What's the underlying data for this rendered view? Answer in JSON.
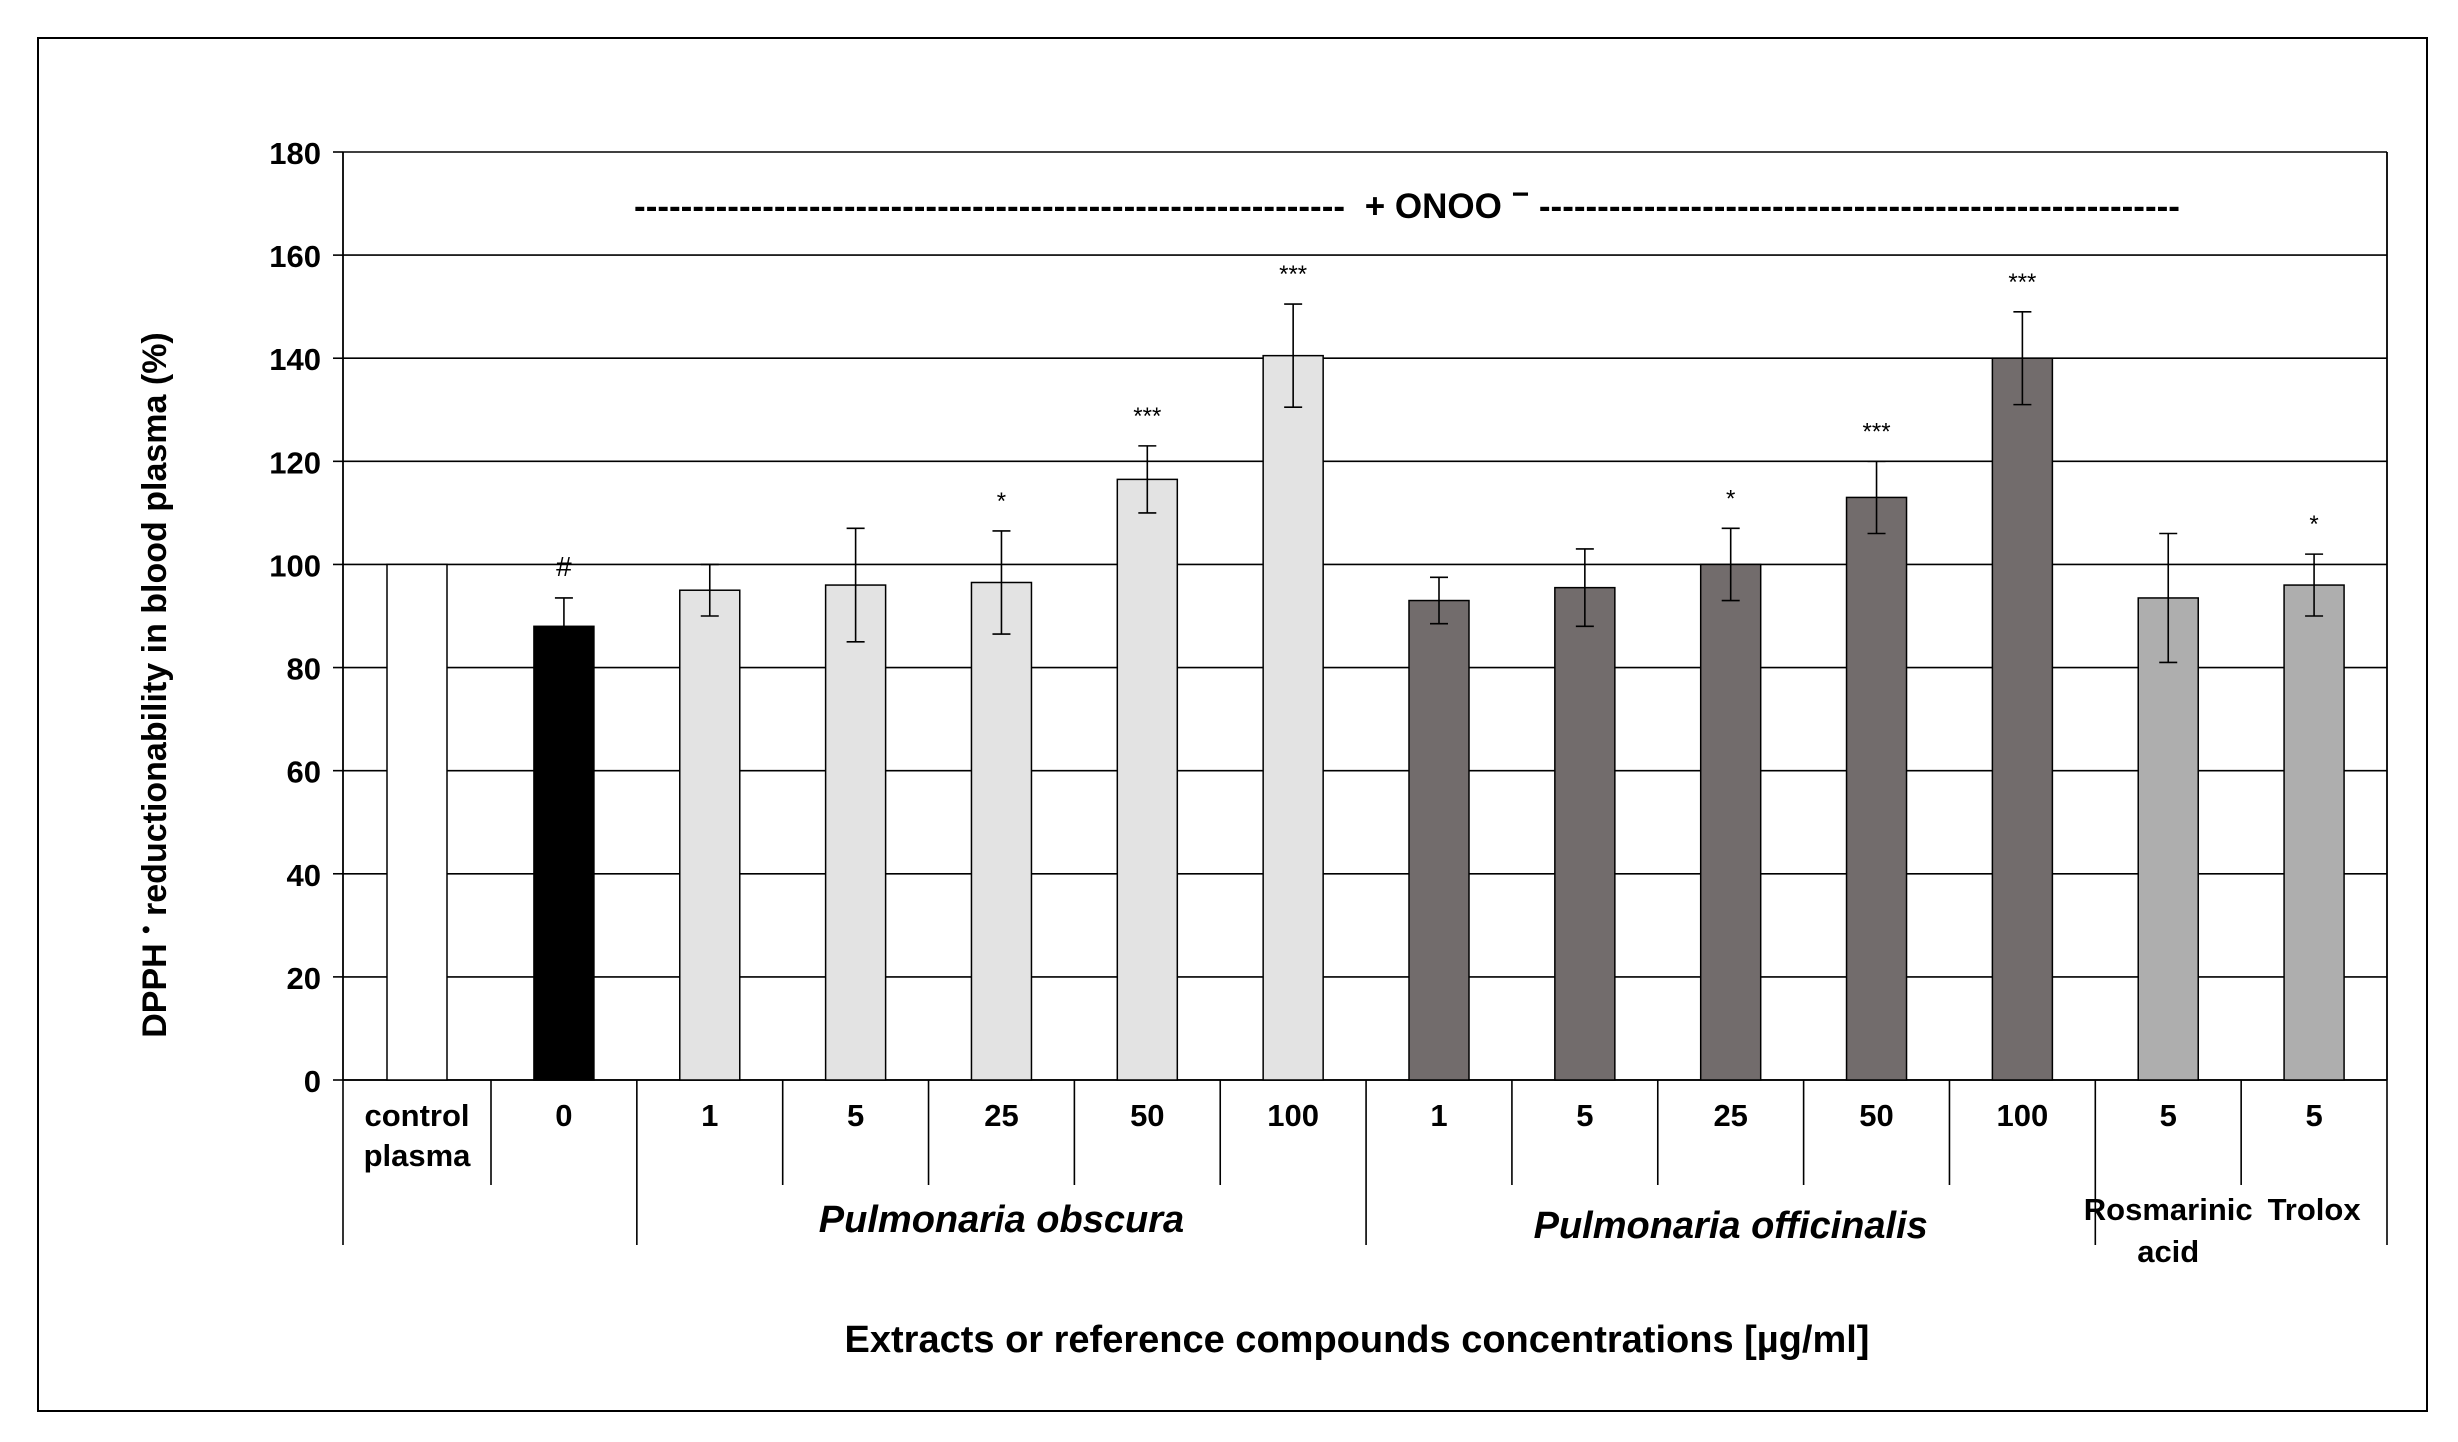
{
  "chart_data": {
    "type": "bar",
    "ylabel_main": "DPPH",
    "ylabel_sup": "•",
    "ylabel_rest": " reductionability in blood plasma (%)",
    "xlabel": "Extracts or reference compounds concentrations [µg/ml]",
    "banner": {
      "left_dashes": "-------------------------------------------------------------",
      "text": "+ ONOO",
      "sup": "−",
      "right_dashes": "-------------------------------------------------------"
    },
    "ylim": [
      0,
      180
    ],
    "yticks": [
      "0",
      "20",
      "40",
      "60",
      "80",
      "100",
      "120",
      "140",
      "160",
      "180"
    ],
    "grid": true,
    "categories": [
      {
        "label": "control",
        "label2": "plasma"
      },
      {
        "label": "0"
      },
      {
        "label": "1"
      },
      {
        "label": "5"
      },
      {
        "label": "25"
      },
      {
        "label": "50"
      },
      {
        "label": "100"
      },
      {
        "label": "1"
      },
      {
        "label": "5"
      },
      {
        "label": "25"
      },
      {
        "label": "50"
      },
      {
        "label": "100"
      },
      {
        "label": "5"
      },
      {
        "label": "5"
      }
    ],
    "groups": [
      {
        "label": "Pulmonaria obscura",
        "italic": true
      },
      {
        "label": "Pulmonaria officinalis",
        "italic": true
      },
      {
        "label": "Rosmarinic",
        "label2": "acid"
      },
      {
        "label": "Trolox"
      }
    ],
    "bars": [
      {
        "value": 100,
        "error": 0,
        "sig": "",
        "color": "#ffffff"
      },
      {
        "value": 88,
        "error": 5.5,
        "sig": "#",
        "color": "#000000"
      },
      {
        "value": 95,
        "error": 5,
        "sig": "",
        "color": "#e3e3e3"
      },
      {
        "value": 96,
        "error": 11,
        "sig": "",
        "color": "#e3e3e3"
      },
      {
        "value": 96.5,
        "error": 10,
        "sig": "*",
        "color": "#e3e3e3"
      },
      {
        "value": 116.5,
        "error": 6.5,
        "sig": "***",
        "color": "#e3e3e3"
      },
      {
        "value": 140.5,
        "error": 10,
        "sig": "***",
        "color": "#e3e3e3"
      },
      {
        "value": 93,
        "error": 4.5,
        "sig": "",
        "color": "#726c6c"
      },
      {
        "value": 95.5,
        "error": 7.5,
        "sig": "",
        "color": "#726c6c"
      },
      {
        "value": 100,
        "error": 7,
        "sig": "*",
        "color": "#726c6c"
      },
      {
        "value": 113,
        "error": 7,
        "sig": "***",
        "color": "#726c6c"
      },
      {
        "value": 140,
        "error": 9,
        "sig": "***",
        "color": "#726c6c"
      },
      {
        "value": 93.5,
        "error": 12.5,
        "sig": "",
        "color": "#aeaeae"
      },
      {
        "value": 96,
        "error": 6,
        "sig": "*",
        "color": "#aeaeae"
      }
    ]
  }
}
